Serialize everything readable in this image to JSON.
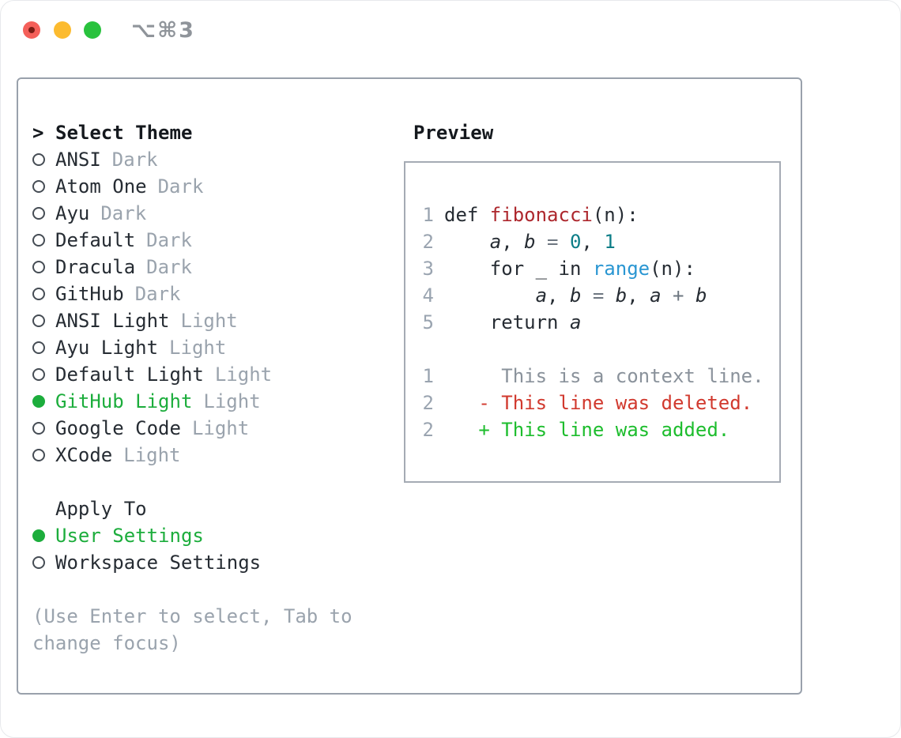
{
  "window": {
    "title": "⌥⌘3"
  },
  "colors": {
    "text": "#262c33",
    "header": "#15191e",
    "muted": "#9aa3ad",
    "green": "#1cad3c",
    "func-red": "#ad272d",
    "del-red": "#d1392e",
    "add-green": "#1dbd2d",
    "teal": "#0c7d87",
    "blue": "#2a96d2",
    "op": "#6e7781",
    "linenum": "#9aa4b0",
    "ctx": "#8a929b",
    "panel-border": "#99a1ac",
    "box-border": "#a5abb4",
    "title-gray": "#8f949a",
    "tl-red": "#f4605a",
    "tl-red-dot": "#7a1d15",
    "tl-yellow": "#fcbb2f",
    "tl-green": "#29c23d"
  },
  "select_theme": {
    "header": "Select Theme",
    "items": [
      {
        "name": "ANSI",
        "tag": "Dark",
        "selected": false
      },
      {
        "name": "Atom One",
        "tag": "Dark",
        "selected": false
      },
      {
        "name": "Ayu",
        "tag": "Dark",
        "selected": false
      },
      {
        "name": "Default",
        "tag": "Dark",
        "selected": false
      },
      {
        "name": "Dracula",
        "tag": "Dark",
        "selected": false
      },
      {
        "name": "GitHub",
        "tag": "Dark",
        "selected": false
      },
      {
        "name": "ANSI Light",
        "tag": "Light",
        "selected": false
      },
      {
        "name": "Ayu Light",
        "tag": "Light",
        "selected": false
      },
      {
        "name": "Default Light",
        "tag": "Light",
        "selected": false
      },
      {
        "name": "GitHub Light",
        "tag": "Light",
        "selected": true
      },
      {
        "name": "Google Code",
        "tag": "Light",
        "selected": false
      },
      {
        "name": "XCode",
        "tag": "Light",
        "selected": false
      }
    ]
  },
  "apply_to": {
    "header": "Apply To",
    "items": [
      {
        "name": "User Settings",
        "selected": true
      },
      {
        "name": "Workspace Settings",
        "selected": false
      }
    ]
  },
  "hint": "(Use Enter to select, Tab to change focus)",
  "preview": {
    "header": "Preview",
    "lines": [
      {
        "num": "1",
        "segments": [
          {
            "t": "def ",
            "c": "code"
          },
          {
            "t": "fibonacci",
            "c": "func"
          },
          {
            "t": "(n):",
            "c": "code"
          }
        ]
      },
      {
        "num": "2",
        "segments": [
          {
            "t": "    ",
            "c": "code"
          },
          {
            "t": "a",
            "c": "var"
          },
          {
            "t": ", ",
            "c": "code"
          },
          {
            "t": "b",
            "c": "var"
          },
          {
            "t": " = ",
            "c": "op"
          },
          {
            "t": "0",
            "c": "num"
          },
          {
            "t": ", ",
            "c": "code"
          },
          {
            "t": "1",
            "c": "num"
          }
        ]
      },
      {
        "num": "3",
        "segments": [
          {
            "t": "    for _ in ",
            "c": "code"
          },
          {
            "t": "range",
            "c": "builtin"
          },
          {
            "t": "(n):",
            "c": "code"
          }
        ]
      },
      {
        "num": "4",
        "segments": [
          {
            "t": "        ",
            "c": "code"
          },
          {
            "t": "a",
            "c": "var"
          },
          {
            "t": ", ",
            "c": "code"
          },
          {
            "t": "b",
            "c": "var"
          },
          {
            "t": " = ",
            "c": "op"
          },
          {
            "t": "b",
            "c": "var"
          },
          {
            "t": ", ",
            "c": "code"
          },
          {
            "t": "a",
            "c": "var"
          },
          {
            "t": " + ",
            "c": "op"
          },
          {
            "t": "b",
            "c": "var"
          }
        ]
      },
      {
        "num": "5",
        "segments": [
          {
            "t": "    return ",
            "c": "code"
          },
          {
            "t": "a",
            "c": "var"
          }
        ]
      },
      {
        "num": "",
        "segments": []
      },
      {
        "num": "1",
        "segments": [
          {
            "t": "     This is a context line.",
            "c": "context"
          }
        ]
      },
      {
        "num": "2",
        "segments": [
          {
            "t": "   - This line was deleted.",
            "c": "deleted"
          }
        ]
      },
      {
        "num": "2",
        "segments": [
          {
            "t": "   + This line was added.",
            "c": "added"
          }
        ]
      }
    ]
  }
}
